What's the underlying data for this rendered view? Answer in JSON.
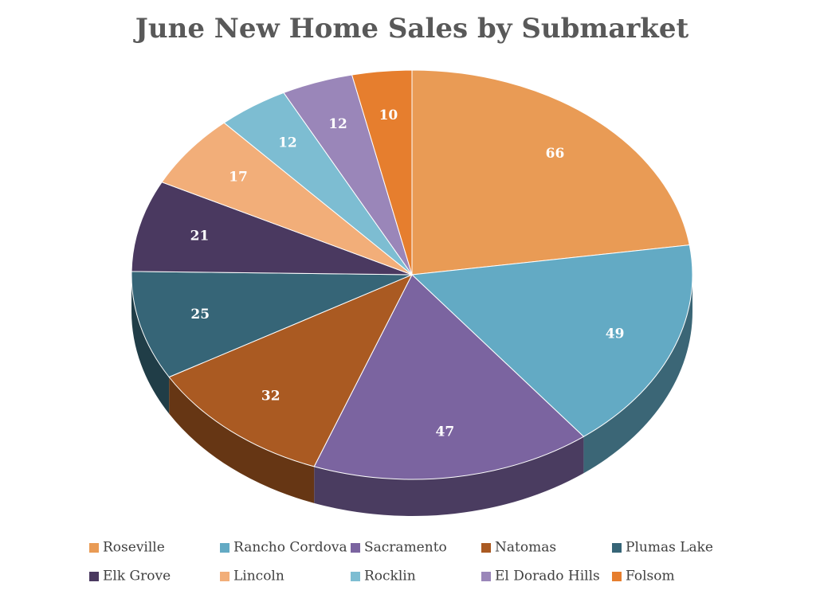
{
  "chart_data": {
    "type": "pie",
    "title": "June New Home Sales by Submarket",
    "categories": [
      "Roseville",
      "Rancho Cordova",
      "Sacramento",
      "Natomas",
      "Plumas Lake",
      "Elk Grove",
      "Lincoln",
      "Rocklin",
      "El Dorado Hills",
      "Folsom"
    ],
    "values": [
      66,
      49,
      47,
      32,
      25,
      21,
      17,
      12,
      12,
      10
    ],
    "colors": [
      "#E99B55",
      "#63AAC4",
      "#7B64A0",
      "#AA5A22",
      "#366577",
      "#4A3960",
      "#F2AE79",
      "#7DBDD2",
      "#9A86B9",
      "#E67E2E"
    ]
  }
}
